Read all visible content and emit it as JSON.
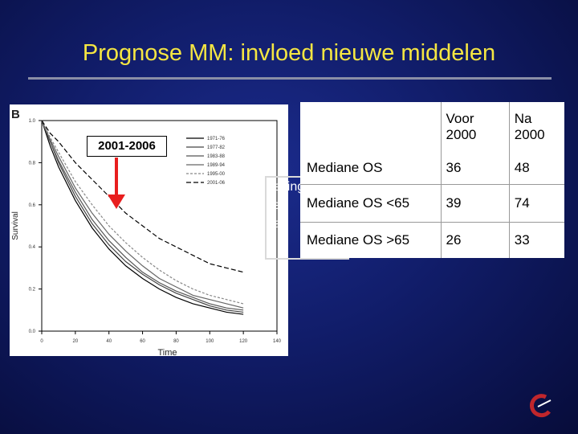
{
  "slide": {
    "title": "Prognose MM: invloed nieuwe middelen",
    "period_label": "2001-2006",
    "panel_letter": "B"
  },
  "hidden_text_lines": [
    "rleving",
    "ve",
    "aa",
    "..."
  ],
  "table": {
    "header": [
      "",
      "Voor\n2000",
      "Na\n2000"
    ],
    "rows": [
      {
        "label": "Mediane OS",
        "voor": "36",
        "na": "48"
      },
      {
        "label": "Mediane OS <65",
        "voor": "39",
        "na": "74"
      },
      {
        "label": "Mediane OS >65",
        "voor": "26",
        "na": "33"
      }
    ]
  },
  "colors": {
    "title": "#f5e642",
    "background": "#111d6a",
    "accent_logo": "#c0262c"
  },
  "chart_data": {
    "type": "line",
    "title": "",
    "xlabel": "Time",
    "ylabel": "Survival",
    "xlim": [
      0,
      140
    ],
    "ylim": [
      0,
      1
    ],
    "x_ticks": [
      "0",
      "20",
      "40",
      "60",
      "80",
      "100",
      "120",
      "140"
    ],
    "y_ticks": [
      "0.0",
      "0.2",
      "0.4",
      "0.6",
      "0.8",
      "1.0"
    ],
    "legend_position": "top-right",
    "series": [
      {
        "name": "1971-76",
        "color": "#000000",
        "dash": "",
        "x": [
          0,
          5,
          10,
          20,
          30,
          40,
          50,
          60,
          70,
          80,
          90,
          100,
          110,
          120
        ],
        "y": [
          1.0,
          0.88,
          0.78,
          0.62,
          0.49,
          0.39,
          0.31,
          0.25,
          0.2,
          0.16,
          0.13,
          0.11,
          0.09,
          0.08
        ]
      },
      {
        "name": "1977-82",
        "color": "#444444",
        "dash": "",
        "x": [
          0,
          5,
          10,
          20,
          30,
          40,
          50,
          60,
          70,
          80,
          90,
          100,
          110,
          120
        ],
        "y": [
          1.0,
          0.9,
          0.8,
          0.64,
          0.51,
          0.41,
          0.33,
          0.27,
          0.22,
          0.18,
          0.15,
          0.12,
          0.1,
          0.09
        ]
      },
      {
        "name": "1983-88",
        "color": "#555555",
        "dash": "",
        "x": [
          0,
          5,
          10,
          20,
          30,
          40,
          50,
          60,
          70,
          80,
          90,
          100,
          110,
          120
        ],
        "y": [
          1.0,
          0.9,
          0.81,
          0.66,
          0.53,
          0.43,
          0.35,
          0.28,
          0.23,
          0.19,
          0.16,
          0.13,
          0.11,
          0.1
        ]
      },
      {
        "name": "1989-94",
        "color": "#666666",
        "dash": "",
        "x": [
          0,
          5,
          10,
          20,
          30,
          40,
          50,
          60,
          70,
          80,
          90,
          100,
          110,
          120
        ],
        "y": [
          1.0,
          0.91,
          0.83,
          0.68,
          0.56,
          0.46,
          0.38,
          0.31,
          0.25,
          0.21,
          0.17,
          0.15,
          0.13,
          0.11
        ]
      },
      {
        "name": "1995-00",
        "color": "#888888",
        "dash": "3,2",
        "x": [
          0,
          5,
          10,
          20,
          30,
          40,
          50,
          60,
          70,
          80,
          90,
          100,
          110,
          120
        ],
        "y": [
          1.0,
          0.92,
          0.85,
          0.71,
          0.6,
          0.5,
          0.42,
          0.35,
          0.29,
          0.24,
          0.2,
          0.17,
          0.15,
          0.13
        ]
      },
      {
        "name": "2001-06",
        "color": "#000000",
        "dash": "6,3",
        "x": [
          0,
          5,
          10,
          20,
          30,
          40,
          50,
          60,
          70,
          80,
          90,
          100,
          110,
          120
        ],
        "y": [
          1.0,
          0.94,
          0.9,
          0.8,
          0.72,
          0.64,
          0.56,
          0.5,
          0.44,
          0.4,
          0.36,
          0.32,
          0.3,
          0.28
        ]
      }
    ]
  }
}
